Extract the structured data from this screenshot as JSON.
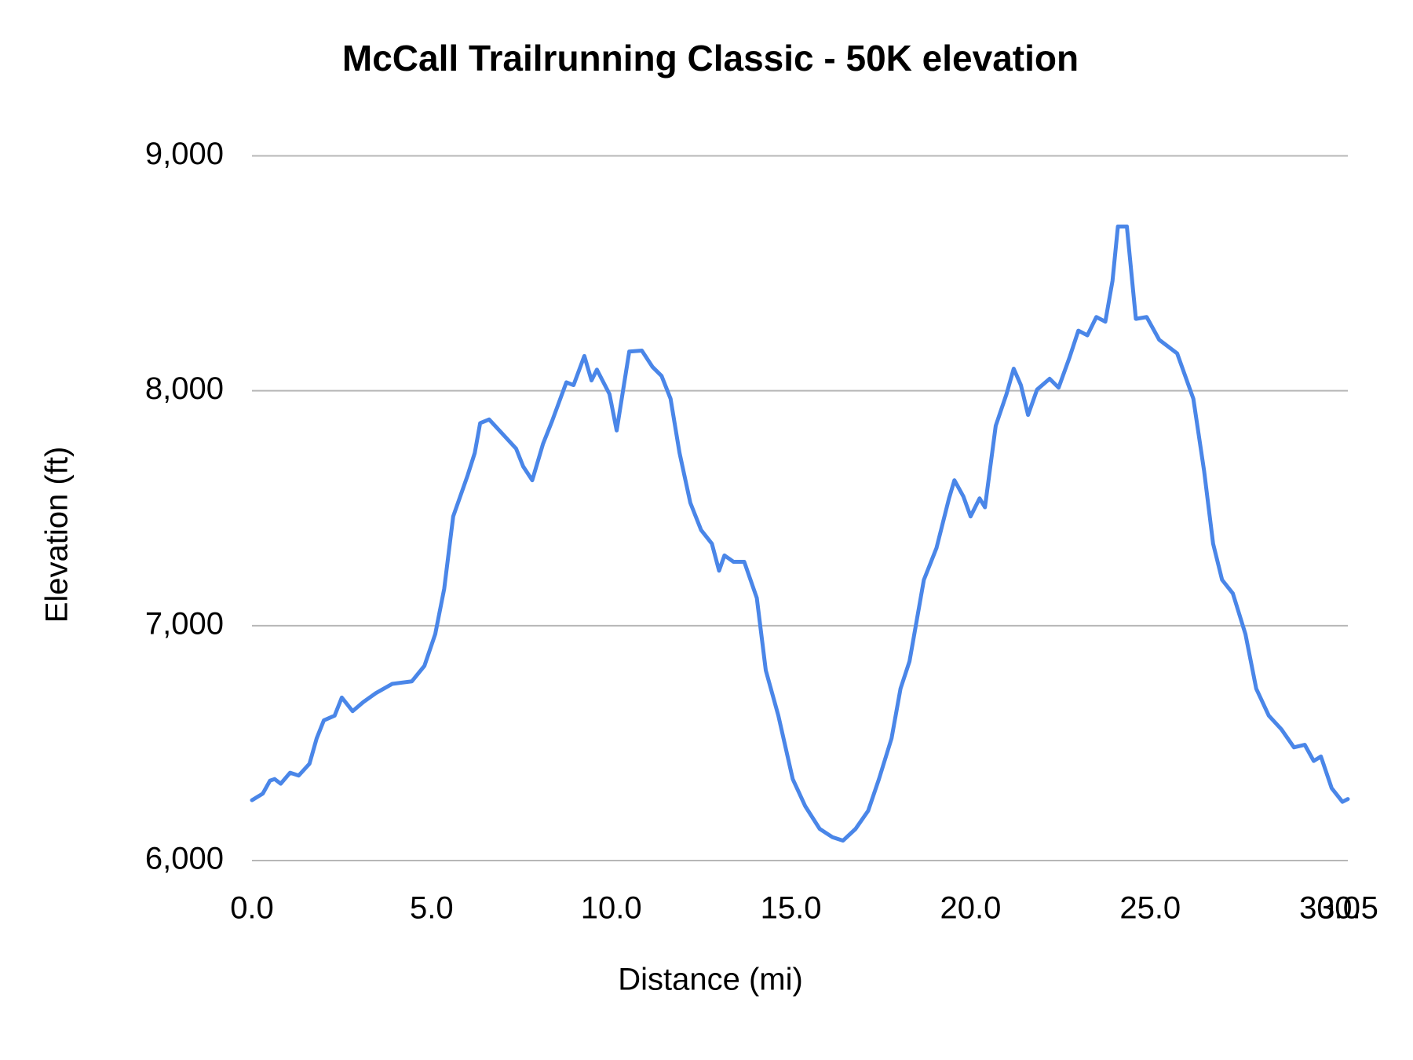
{
  "chart_data": {
    "type": "line",
    "title": "McCall Trailrunning  Classic - 50K elevation",
    "x_label": "Distance (mi)",
    "y_label": "Elevation (ft)",
    "x": [
      0,
      0.3,
      0.5,
      0.63,
      0.8,
      1.06,
      1.3,
      1.6,
      1.8,
      2.0,
      2.3,
      2.5,
      2.8,
      3.1,
      3.45,
      3.9,
      4.45,
      4.8,
      5.1,
      5.35,
      5.6,
      6.0,
      6.2,
      6.35,
      6.6,
      7.0,
      7.35,
      7.55,
      7.8,
      8.1,
      8.35,
      8.75,
      8.95,
      9.25,
      9.45,
      9.6,
      9.95,
      10.15,
      10.5,
      10.85,
      11.15,
      11.4,
      11.65,
      11.9,
      12.2,
      12.5,
      12.8,
      13.0,
      13.15,
      13.4,
      13.7,
      14.05,
      14.3,
      14.65,
      15.05,
      15.4,
      15.8,
      16.15,
      16.45,
      16.8,
      17.15,
      17.45,
      17.8,
      18.05,
      18.3,
      18.7,
      19.05,
      19.4,
      19.55,
      19.8,
      20.0,
      20.25,
      20.4,
      20.7,
      21.0,
      21.2,
      21.4,
      21.6,
      21.85,
      22.2,
      22.45,
      22.75,
      23.0,
      23.25,
      23.5,
      23.75,
      23.95,
      24.1,
      24.35,
      24.6,
      24.9,
      25.25,
      25.75,
      26.2,
      26.5,
      26.75,
      27.0,
      27.3,
      27.65,
      27.95,
      28.3,
      28.65,
      29.0,
      29.3,
      29.55,
      29.75,
      30.05,
      30.35,
      30.5
    ],
    "series": [
      {
        "name": "Elevation",
        "color": "#4a86e8",
        "values": [
          6257,
          6285,
          6340,
          6347,
          6327,
          6374,
          6362,
          6412,
          6520,
          6597,
          6617,
          6694,
          6636,
          6675,
          6713,
          6752,
          6763,
          6829,
          6964,
          7157,
          7465,
          7639,
          7735,
          7862,
          7878,
          7812,
          7754,
          7677,
          7619,
          7774,
          7870,
          8036,
          8024,
          8148,
          8044,
          8090,
          7986,
          7831,
          8167,
          8171,
          8101,
          8063,
          7966,
          7735,
          7523,
          7407,
          7349,
          7234,
          7299,
          7272,
          7272,
          7118,
          6810,
          6617,
          6347,
          6231,
          6135,
          6100,
          6085,
          6135,
          6212,
          6347,
          6520,
          6732,
          6848,
          7195,
          7330,
          7542,
          7619,
          7550,
          7465,
          7542,
          7504,
          7851,
          7986,
          8094,
          8024,
          7897,
          8005,
          8051,
          8013,
          8140,
          8256,
          8236,
          8314,
          8294,
          8468,
          8699,
          8699,
          8306,
          8314,
          8217,
          8159,
          7966,
          7658,
          7349,
          7195,
          7137,
          6964,
          6732,
          6617,
          6559,
          6482,
          6493,
          6424,
          6443,
          6308,
          6250,
          6262
        ]
      }
    ],
    "xlim": [
      0,
      30.5
    ],
    "xticks": [
      {
        "value": 0,
        "label": "0.0"
      },
      {
        "value": 5,
        "label": "5.0"
      },
      {
        "value": 10,
        "label": "10.0"
      },
      {
        "value": 15,
        "label": "15.0"
      },
      {
        "value": 20,
        "label": "20.0"
      },
      {
        "value": 25,
        "label": "25.0"
      },
      {
        "value": 30,
        "label": "30.0"
      },
      {
        "value": 30.5,
        "label": "30.5"
      }
    ],
    "ylim": [
      6000,
      9000
    ],
    "yticks": [
      {
        "value": 6000,
        "label": "6,000"
      },
      {
        "value": 7000,
        "label": "7,000"
      },
      {
        "value": 8000,
        "label": "8,000"
      },
      {
        "value": 9000,
        "label": "9,000"
      }
    ],
    "grid": true
  }
}
